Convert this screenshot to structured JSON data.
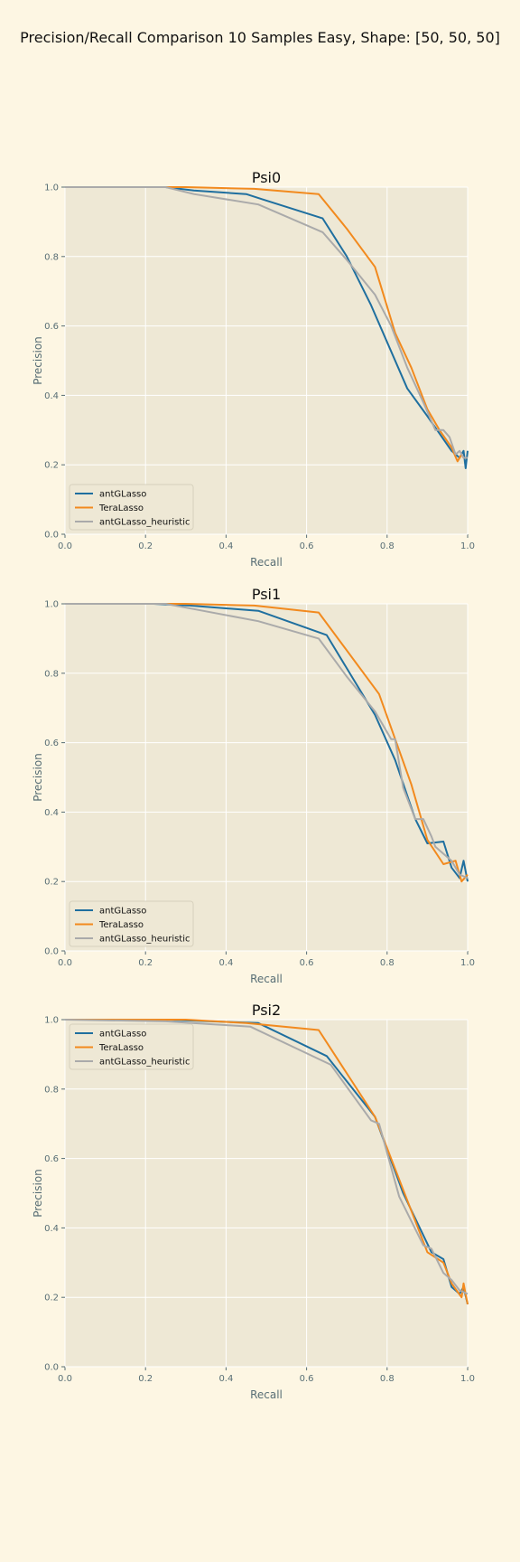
{
  "figure": {
    "suptitle": "Precision/Recall Comparison 10 Samples Easy, Shape: [50, 50, 50]",
    "background": "#fdf6e3",
    "axes_background": "#eee8d5",
    "grid_color": "#ffffff"
  },
  "chart_data": [
    {
      "type": "line",
      "title": "Psi0",
      "xlabel": "Recall",
      "ylabel": "Precision",
      "xlim": [
        0,
        1
      ],
      "ylim": [
        0,
        1
      ],
      "xticks": [
        "0.0",
        "0.2",
        "0.4",
        "0.6",
        "0.8",
        "1.0"
      ],
      "yticks": [
        "0.0",
        "0.2",
        "0.4",
        "0.6",
        "0.8",
        "1.0"
      ],
      "grid": true,
      "legend": "lower-left",
      "series": [
        {
          "name": "antGLasso",
          "color": "#1f6f9f",
          "points": [
            [
              0,
              1.0
            ],
            [
              0.25,
              1.0
            ],
            [
              0.32,
              0.99
            ],
            [
              0.45,
              0.98
            ],
            [
              0.49,
              0.965
            ],
            [
              0.64,
              0.91
            ],
            [
              0.7,
              0.8
            ],
            [
              0.76,
              0.66
            ],
            [
              0.85,
              0.42
            ],
            [
              0.9,
              0.34
            ],
            [
              0.93,
              0.29
            ],
            [
              0.96,
              0.24
            ],
            [
              0.98,
              0.22
            ],
            [
              0.99,
              0.24
            ],
            [
              0.995,
              0.19
            ],
            [
              1.0,
              0.24
            ]
          ]
        },
        {
          "name": "TeraLasso",
          "color": "#f28a1e",
          "points": [
            [
              0,
              1.0
            ],
            [
              0.3,
              1.0
            ],
            [
              0.47,
              0.995
            ],
            [
              0.63,
              0.98
            ],
            [
              0.7,
              0.88
            ],
            [
              0.77,
              0.77
            ],
            [
              0.82,
              0.58
            ],
            [
              0.86,
              0.48
            ],
            [
              0.9,
              0.36
            ],
            [
              0.93,
              0.3
            ],
            [
              0.96,
              0.25
            ],
            [
              0.975,
              0.21
            ],
            [
              0.985,
              0.23
            ],
            [
              0.99,
              0.22
            ],
            [
              1.0,
              0.22
            ]
          ]
        },
        {
          "name": "antGLasso_heuristic",
          "color": "#aaaaaa",
          "points": [
            [
              0,
              1.0
            ],
            [
              0.25,
              1.0
            ],
            [
              0.32,
              0.98
            ],
            [
              0.48,
              0.95
            ],
            [
              0.64,
              0.87
            ],
            [
              0.7,
              0.79
            ],
            [
              0.77,
              0.69
            ],
            [
              0.81,
              0.6
            ],
            [
              0.85,
              0.48
            ],
            [
              0.89,
              0.38
            ],
            [
              0.92,
              0.3
            ],
            [
              0.94,
              0.3
            ],
            [
              0.955,
              0.28
            ],
            [
              0.97,
              0.23
            ],
            [
              0.98,
              0.24
            ],
            [
              0.99,
              0.22
            ],
            [
              1.0,
              0.22
            ]
          ]
        }
      ]
    },
    {
      "type": "line",
      "title": "Psi1",
      "xlabel": "Recall",
      "ylabel": "Precision",
      "xlim": [
        0,
        1
      ],
      "ylim": [
        0,
        1
      ],
      "xticks": [
        "0.0",
        "0.2",
        "0.4",
        "0.6",
        "0.8",
        "1.0"
      ],
      "yticks": [
        "0.0",
        "0.2",
        "0.4",
        "0.6",
        "0.8",
        "1.0"
      ],
      "grid": true,
      "legend": "lower-left",
      "series": [
        {
          "name": "antGLasso",
          "color": "#1f6f9f",
          "points": [
            [
              0,
              1.0
            ],
            [
              0.22,
              1.0
            ],
            [
              0.31,
              0.995
            ],
            [
              0.48,
              0.98
            ],
            [
              0.65,
              0.91
            ],
            [
              0.77,
              0.68
            ],
            [
              0.82,
              0.55
            ],
            [
              0.87,
              0.38
            ],
            [
              0.9,
              0.31
            ],
            [
              0.94,
              0.315
            ],
            [
              0.96,
              0.24
            ],
            [
              0.98,
              0.21
            ],
            [
              0.99,
              0.26
            ],
            [
              1.0,
              0.2
            ]
          ]
        },
        {
          "name": "TeraLasso",
          "color": "#f28a1e",
          "points": [
            [
              0,
              1.0
            ],
            [
              0.3,
              1.0
            ],
            [
              0.47,
              0.995
            ],
            [
              0.63,
              0.975
            ],
            [
              0.78,
              0.74
            ],
            [
              0.86,
              0.48
            ],
            [
              0.9,
              0.32
            ],
            [
              0.94,
              0.25
            ],
            [
              0.97,
              0.26
            ],
            [
              0.985,
              0.2
            ],
            [
              1.0,
              0.22
            ]
          ]
        },
        {
          "name": "antGLasso_heuristic",
          "color": "#aaaaaa",
          "points": [
            [
              0,
              1.0
            ],
            [
              0.25,
              1.0
            ],
            [
              0.32,
              0.985
            ],
            [
              0.48,
              0.95
            ],
            [
              0.63,
              0.9
            ],
            [
              0.7,
              0.79
            ],
            [
              0.77,
              0.69
            ],
            [
              0.81,
              0.61
            ],
            [
              0.82,
              0.61
            ],
            [
              0.84,
              0.47
            ],
            [
              0.87,
              0.38
            ],
            [
              0.89,
              0.38
            ],
            [
              0.91,
              0.33
            ],
            [
              0.92,
              0.3
            ],
            [
              0.94,
              0.28
            ],
            [
              0.96,
              0.26
            ],
            [
              0.97,
              0.24
            ],
            [
              0.98,
              0.22
            ],
            [
              1.0,
              0.21
            ]
          ]
        }
      ]
    },
    {
      "type": "line",
      "title": "Psi2",
      "xlabel": "Recall",
      "ylabel": "Precision",
      "xlim": [
        0,
        1
      ],
      "ylim": [
        0,
        1
      ],
      "xticks": [
        "0.0",
        "0.2",
        "0.4",
        "0.6",
        "0.8",
        "1.0"
      ],
      "yticks": [
        "0.0",
        "0.2",
        "0.4",
        "0.6",
        "0.8",
        "1.0"
      ],
      "grid": true,
      "legend": "upper-left",
      "series": [
        {
          "name": "antGLasso",
          "color": "#1f6f9f",
          "points": [
            [
              0,
              1.0
            ],
            [
              0.25,
              1.0
            ],
            [
              0.48,
              0.99
            ],
            [
              0.65,
              0.895
            ],
            [
              0.77,
              0.72
            ],
            [
              0.84,
              0.5
            ],
            [
              0.91,
              0.33
            ],
            [
              0.94,
              0.31
            ],
            [
              0.96,
              0.23
            ],
            [
              0.98,
              0.21
            ],
            [
              0.99,
              0.23
            ],
            [
              1.0,
              0.18
            ]
          ]
        },
        {
          "name": "TeraLasso",
          "color": "#f28a1e",
          "points": [
            [
              0,
              1.0
            ],
            [
              0.3,
              1.0
            ],
            [
              0.45,
              0.99
            ],
            [
              0.63,
              0.97
            ],
            [
              0.77,
              0.72
            ],
            [
              0.84,
              0.51
            ],
            [
              0.9,
              0.33
            ],
            [
              0.94,
              0.3
            ],
            [
              0.96,
              0.24
            ],
            [
              0.985,
              0.2
            ],
            [
              0.99,
              0.24
            ],
            [
              1.0,
              0.18
            ]
          ]
        },
        {
          "name": "antGLasso_heuristic",
          "color": "#aaaaaa",
          "points": [
            [
              0,
              1.0
            ],
            [
              0.25,
              0.995
            ],
            [
              0.46,
              0.98
            ],
            [
              0.66,
              0.87
            ],
            [
              0.76,
              0.71
            ],
            [
              0.78,
              0.7
            ],
            [
              0.83,
              0.49
            ],
            [
              0.89,
              0.35
            ],
            [
              0.91,
              0.34
            ],
            [
              0.94,
              0.27
            ],
            [
              0.96,
              0.25
            ],
            [
              0.98,
              0.22
            ],
            [
              1.0,
              0.21
            ]
          ]
        }
      ]
    }
  ]
}
